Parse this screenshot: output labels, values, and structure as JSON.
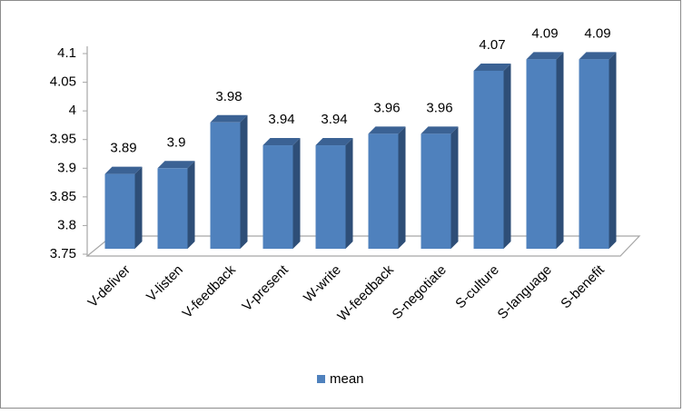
{
  "chart_data": {
    "type": "bar",
    "title": "",
    "xlabel": "",
    "ylabel": "",
    "categories": [
      "V-deliver",
      "V-listen",
      "V-feedback",
      "V-present",
      "W-write",
      "W-feedback",
      "S-negotiate",
      "S-culture",
      "S-language",
      "S-benefit"
    ],
    "series": [
      {
        "name": "mean",
        "values": [
          3.89,
          3.9,
          3.98,
          3.94,
          3.94,
          3.96,
          3.96,
          4.07,
          4.09,
          4.09
        ],
        "data_labels": [
          "3.89",
          "3.9",
          "3.98",
          "3.94",
          "3.94",
          "3.96",
          "3.96",
          "4.07",
          "4.09",
          "4.09"
        ]
      }
    ],
    "ylim": [
      3.75,
      4.1
    ],
    "yticks": [
      "3.75",
      "3.8",
      "3.85",
      "3.9",
      "3.95",
      "4",
      "4.05",
      "4.1"
    ],
    "grid": false,
    "legend_position": "bottom",
    "three_d": true,
    "colors": {
      "bar_front": "#4F81BD",
      "bar_side": "#2E4E77",
      "bar_top": "#3B6294",
      "floor_line": "#a6a6a6"
    }
  }
}
